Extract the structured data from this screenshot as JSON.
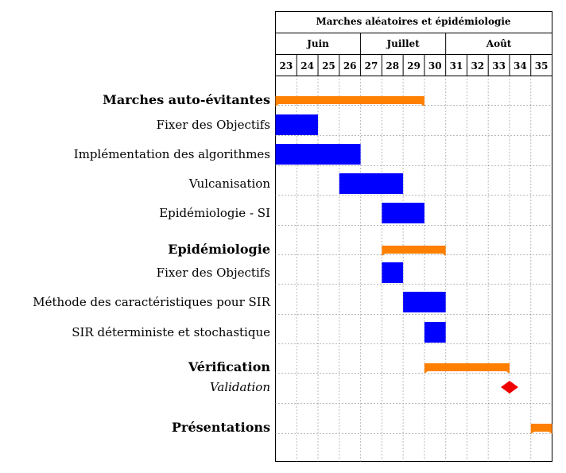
{
  "chart_data": {
    "type": "gantt",
    "title": "Marches aléatoires et épidémiologie",
    "months": [
      {
        "label": "Juin",
        "start_week": 23,
        "end_week": 26
      },
      {
        "label": "Juillet",
        "start_week": 27,
        "end_week": 30
      },
      {
        "label": "Août",
        "start_week": 31,
        "end_week": 35
      }
    ],
    "weeks": [
      "23",
      "24",
      "25",
      "26",
      "27",
      "28",
      "29",
      "30",
      "31",
      "32",
      "33",
      "34",
      "35"
    ],
    "rows": [
      {
        "kind": "group",
        "label": "Marches auto-évitantes",
        "start_week": 23,
        "end_week": 29
      },
      {
        "kind": "task",
        "label": "Fixer des Objectifs",
        "start_week": 23,
        "end_week": 24
      },
      {
        "kind": "task",
        "label": "Implémentation des algorithmes",
        "start_week": 23,
        "end_week": 26
      },
      {
        "kind": "task",
        "label": "Vulcanisation",
        "start_week": 26,
        "end_week": 28
      },
      {
        "kind": "task",
        "label": "Epidémiologie - SI",
        "start_week": 28,
        "end_week": 29
      },
      {
        "kind": "group",
        "label": "Epidémiologie",
        "start_week": 28,
        "end_week": 30
      },
      {
        "kind": "task",
        "label": "Fixer des Objectifs",
        "start_week": 28,
        "end_week": 28
      },
      {
        "kind": "task",
        "label": "Méthode des caractéristiques pour SIR",
        "start_week": 29,
        "end_week": 30
      },
      {
        "kind": "task",
        "label": "SIR déterministe et stochastique",
        "start_week": 30,
        "end_week": 30
      },
      {
        "kind": "group",
        "label": "Vérification",
        "start_week": 30,
        "end_week": 33
      },
      {
        "kind": "milestone",
        "label": "Validation",
        "week": 34
      },
      {
        "kind": "group",
        "label": "Présentations",
        "start_week": 35,
        "end_week": 35
      }
    ],
    "colors": {
      "group": "#ff7f00",
      "task": "#0000ff",
      "milestone": "#ee0000"
    },
    "grid": "dotted"
  }
}
